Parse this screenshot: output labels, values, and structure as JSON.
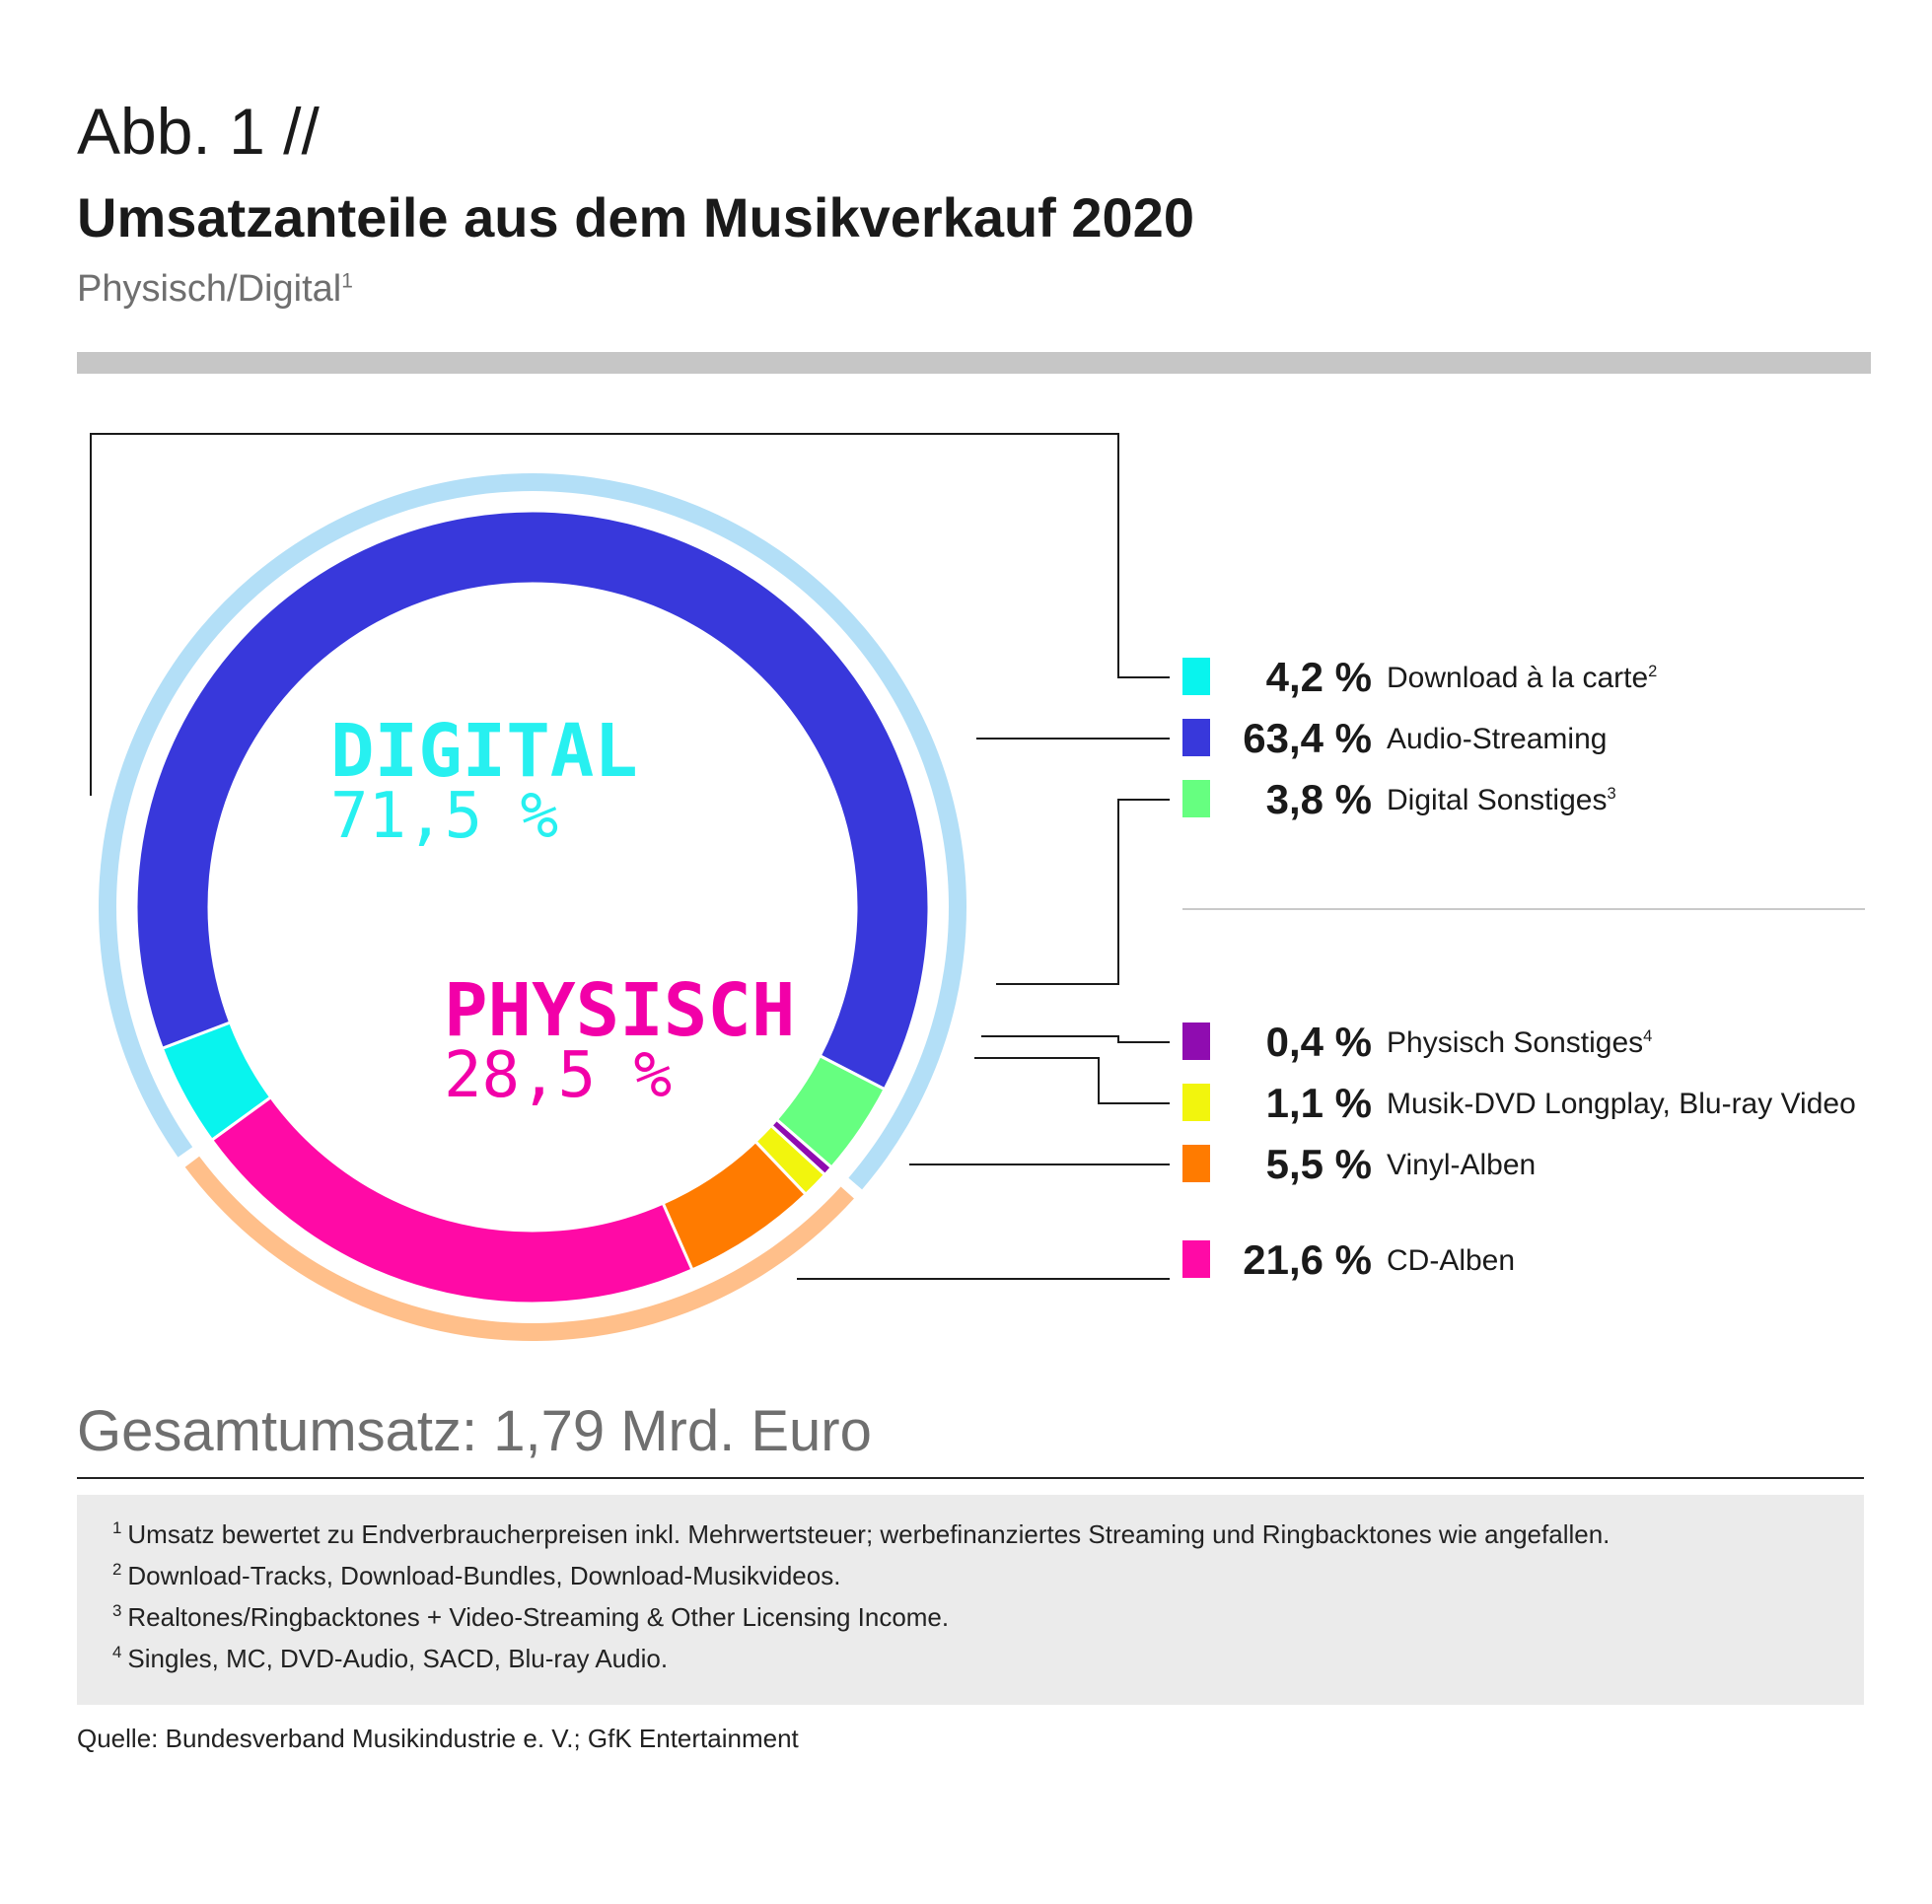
{
  "header": {
    "figure_label": "Abb. 1 //",
    "title": "Umsatzanteile aus dem Musikverkauf 2020",
    "subtitle": "Physisch/Digital",
    "subtitle_note": "1"
  },
  "chart_data": {
    "type": "pie",
    "title": "Umsatzanteile aus dem Musikverkauf 2020",
    "subtitle": "Physisch/Digital",
    "unit": "%",
    "groups": [
      {
        "name": "DIGITAL",
        "value_label": "71,5 %",
        "value": 71.5,
        "label_color": "#27f0f0",
        "ring_color": "#b3dff7"
      },
      {
        "name": "PHYSISCH",
        "value_label": "28,5 %",
        "value": 28.5,
        "label_color": "#f200a8",
        "ring_color": "#ffbf8a"
      }
    ],
    "slices": [
      {
        "label": "Download à la carte",
        "note": "2",
        "value": 4.2,
        "value_label": "4,2 %",
        "group": "DIGITAL",
        "color": "#08f4ee"
      },
      {
        "label": "Audio-Streaming",
        "note": "",
        "value": 63.4,
        "value_label": "63,4 %",
        "group": "DIGITAL",
        "color": "#3838db"
      },
      {
        "label": "Digital Sonstiges",
        "note": "3",
        "value": 3.8,
        "value_label": "3,8 %",
        "group": "DIGITAL",
        "color": "#66ff80"
      },
      {
        "label": "Physisch Sonstiges",
        "note": "4",
        "value": 0.4,
        "value_label": "0,4 %",
        "group": "PHYSISCH",
        "color": "#8f0cb0"
      },
      {
        "label": "Musik-DVD Longplay, Blu-ray Video",
        "note": "",
        "value": 1.1,
        "value_label": "1,1 %",
        "group": "PHYSISCH",
        "color": "#f2f50d"
      },
      {
        "label": "Vinyl-Alben",
        "note": "",
        "value": 5.5,
        "value_label": "5,5 %",
        "group": "PHYSISCH",
        "color": "#ff7b00"
      },
      {
        "label": "CD-Alben",
        "note": "",
        "value": 21.6,
        "value_label": "21,6 %",
        "group": "PHYSISCH",
        "color": "#ff0aa6"
      }
    ],
    "legend_position": "right"
  },
  "total": {
    "text": "Gesamtumsatz: 1,79 Mrd. Euro"
  },
  "footnotes": [
    {
      "marker": "1",
      "text": "Umsatz bewertet zu Endverbraucherpreisen inkl. Mehrwertsteuer; werbefinanziertes Streaming und Ringbacktones wie angefallen."
    },
    {
      "marker": "2",
      "text": "Download-Tracks, Download-Bundles, Download-Musikvideos."
    },
    {
      "marker": "3",
      "text": "Realtones/Ringbacktones + Video-Streaming & Other Licensing Income."
    },
    {
      "marker": "4",
      "text": "Singles, MC, DVD-Audio, SACD, Blu-ray Audio."
    }
  ],
  "source": {
    "text": "Quelle: Bundesverband Musikindustrie e. V.; GfK Entertainment"
  },
  "colors": {
    "title_rule": "#c6c6c6",
    "footnote_bg": "#ebebeb",
    "leader_line": "#1a1a1a"
  }
}
